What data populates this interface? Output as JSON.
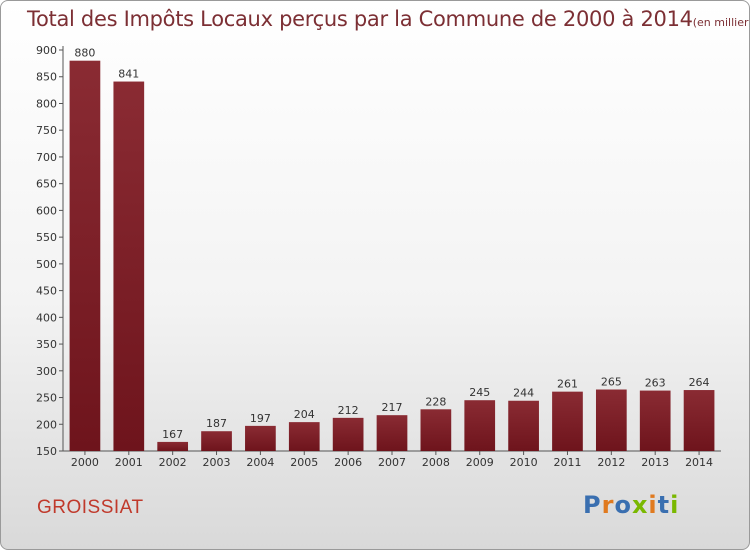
{
  "header": {
    "title": "Total des Impôts Locaux perçus par la Commune de 2000 à 2014",
    "unit": "(en milliers d'€)"
  },
  "footer": {
    "commune": "GROISSIAT",
    "logo": "Proxiti",
    "logo_letters": [
      {
        "ch": "P",
        "color": "#3a6fb0"
      },
      {
        "ch": "r",
        "color": "#e07a1f"
      },
      {
        "ch": "o",
        "color": "#3a6fb0"
      },
      {
        "ch": "x",
        "color": "#7ab800"
      },
      {
        "ch": "i",
        "color": "#e07a1f"
      },
      {
        "ch": "t",
        "color": "#3a6fb0"
      },
      {
        "ch": "i",
        "color": "#7ab800"
      }
    ]
  },
  "chart_data": {
    "type": "bar",
    "title": "Total des Impôts Locaux perçus par la Commune de 2000 à 2014",
    "unit": "(en milliers d'€)",
    "categories": [
      "2000",
      "2001",
      "2002",
      "2003",
      "2004",
      "2005",
      "2006",
      "2007",
      "2008",
      "2009",
      "2010",
      "2011",
      "2012",
      "2013",
      "2014"
    ],
    "values": [
      880,
      841,
      167,
      187,
      197,
      204,
      212,
      217,
      228,
      245,
      244,
      261,
      265,
      263,
      264
    ],
    "ylim": [
      150,
      900
    ],
    "yticks": [
      150,
      200,
      250,
      300,
      350,
      400,
      450,
      500,
      550,
      600,
      650,
      700,
      750,
      800,
      850,
      900
    ],
    "grid": false,
    "bar_color": "#6e141c",
    "bar_color_light": "#8a2b33"
  }
}
